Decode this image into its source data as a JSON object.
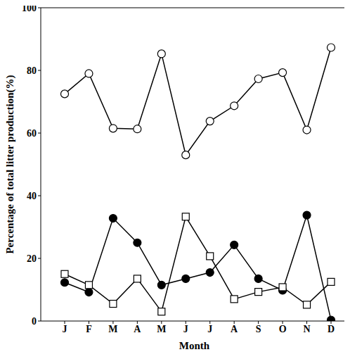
{
  "chart_data": {
    "type": "line",
    "categories": [
      "J",
      "F",
      "M",
      "A",
      "M",
      "J",
      "J",
      "A",
      "S",
      "O",
      "N",
      "D"
    ],
    "x_label": "Month",
    "y_label": "Percentage of total litter production(%)",
    "ylim": [
      0,
      100
    ],
    "yticks": [
      0,
      20,
      40,
      60,
      80,
      100
    ],
    "grid": false,
    "series": [
      {
        "color": "#000000",
        "marker": "open_circle",
        "line_style": "solid",
        "values": [
          72.5,
          79,
          61.5,
          61.3,
          85.3,
          53,
          63.8,
          68.7,
          77.3,
          79.3,
          61,
          87.3
        ]
      },
      {
        "color": "#000000",
        "marker": "filled_circle",
        "line_style": "solid",
        "values": [
          12.3,
          9.2,
          32.8,
          25,
          11.5,
          13.5,
          15.5,
          24.3,
          13.5,
          9.8,
          33.8,
          0.3
        ]
      },
      {
        "color": "#000000",
        "marker": "open_square",
        "line_style": "solid",
        "values": [
          15,
          11.5,
          5.5,
          13.5,
          3,
          33.3,
          20.7,
          7,
          9.3,
          10.8,
          5.2,
          12.5
        ]
      }
    ]
  }
}
